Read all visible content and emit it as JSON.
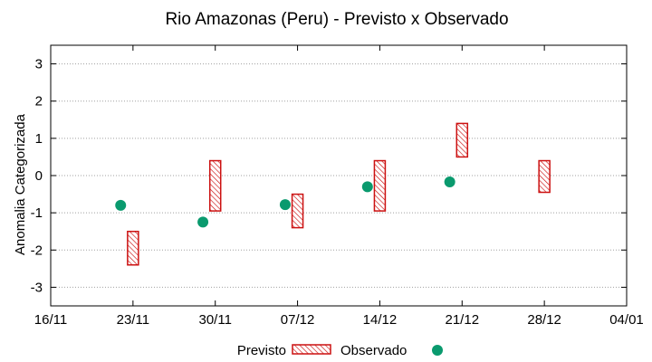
{
  "chart_data": {
    "type": "range-scatter",
    "title": "Rio Amazonas (Peru) - Previsto x Observado",
    "xlabel": "",
    "ylabel": "Anomalia Categorizada",
    "ylim": [
      -3.5,
      3.5
    ],
    "y_ticks": [
      -3,
      -2,
      -1,
      0,
      1,
      2,
      3
    ],
    "x_ticks": [
      "16/11",
      "23/11",
      "30/11",
      "07/12",
      "14/12",
      "21/12",
      "28/12",
      "04/01"
    ],
    "grid": true,
    "legend_position": "bottom",
    "legend": [
      "Previsto",
      "Observado"
    ],
    "colors": {
      "previsto": "#cc1111",
      "observado": "#0a9a6e",
      "grid": "#a0a0a0"
    },
    "previsto": [
      {
        "x": 1.0,
        "low": -2.4,
        "high": -1.5
      },
      {
        "x": 2.0,
        "low": -0.95,
        "high": 0.4
      },
      {
        "x": 3.0,
        "low": -1.4,
        "high": -0.5
      },
      {
        "x": 4.0,
        "low": -0.95,
        "high": 0.4
      },
      {
        "x": 5.0,
        "low": 0.5,
        "high": 1.4
      },
      {
        "x": 6.0,
        "low": -0.45,
        "high": 0.4
      }
    ],
    "observado": [
      {
        "x": 0.85,
        "y": -0.8
      },
      {
        "x": 1.85,
        "y": -1.25
      },
      {
        "x": 2.85,
        "y": -0.78
      },
      {
        "x": 3.85,
        "y": -0.3
      },
      {
        "x": 4.85,
        "y": -0.17
      }
    ]
  }
}
